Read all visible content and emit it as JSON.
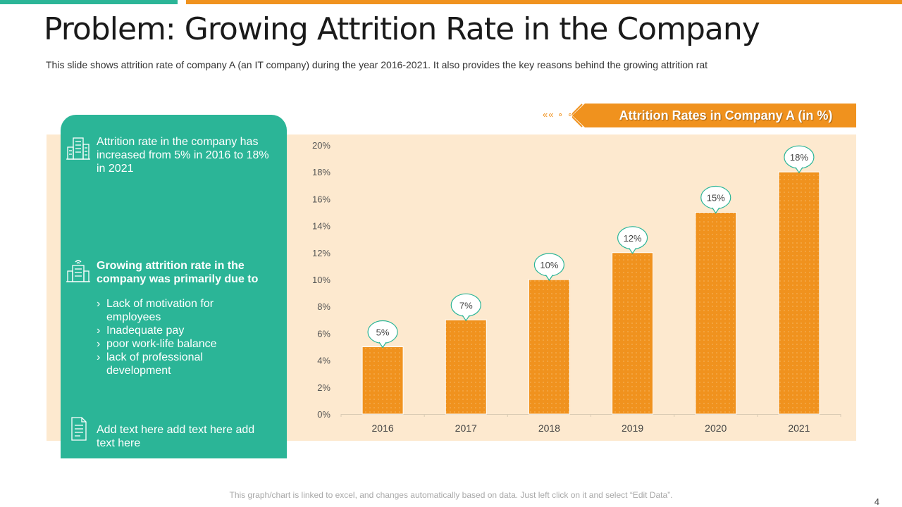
{
  "slide": {
    "title": "Problem: Growing Attrition Rate in the Company",
    "subtitle": "This slide shows attrition rate of company A (an IT company) during the year 2016-2021. It also provides the key reasons behind the growing attrition rat",
    "page_number": "4",
    "footer_note": "This graph/chart is linked to excel, and changes automatically based on data. Just left click on it and select “Edit Data”."
  },
  "card": {
    "block1": {
      "icon": "office-building-icon",
      "text": "Attrition rate in the company has increased from 5% in 2016 to 18% in 2021"
    },
    "block2": {
      "icon": "smart-building-icon",
      "heading": "Growing attrition rate in the company was primarily due to",
      "reasons": [
        "Lack of motivation for employees",
        "Inadequate pay",
        "poor work-life balance",
        "lack of professional development"
      ]
    },
    "block3": {
      "icon": "document-icon",
      "text": "Add text here add text here add text here"
    }
  },
  "colors": {
    "green": "#2bb597",
    "orange": "#f0921e",
    "panel": "#fde9cf",
    "bar": "#f0921e"
  },
  "chart_data": {
    "type": "bar",
    "title": "Attrition Rates in Company A (in %)",
    "categories": [
      "2016",
      "2017",
      "2018",
      "2019",
      "2020",
      "2021"
    ],
    "values": [
      5,
      7,
      10,
      12,
      15,
      18
    ],
    "data_labels": [
      "5%",
      "7%",
      "10%",
      "12%",
      "15%",
      "18%"
    ],
    "yticks": [
      "0%",
      "2%",
      "4%",
      "6%",
      "8%",
      "10%",
      "12%",
      "14%",
      "16%",
      "18%",
      "20%"
    ],
    "ylim": [
      0,
      20
    ],
    "xlabel": "",
    "ylabel": "",
    "grid": false
  }
}
